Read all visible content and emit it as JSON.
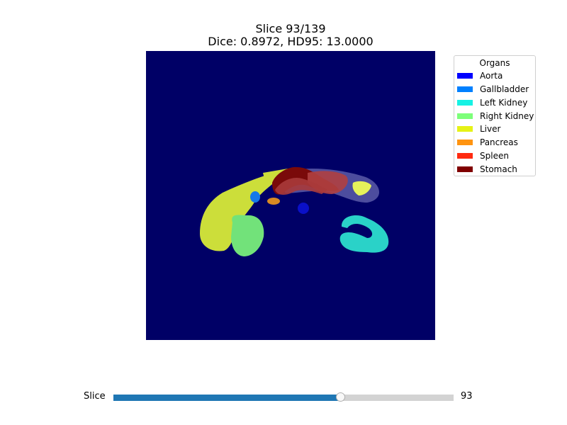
{
  "figure": {
    "title_line1": "Slice 93/139",
    "title_line2": "Dice: 0.8972, HD95: 13.0000"
  },
  "image": {
    "background_color": "#000066",
    "visible_structures": [
      "Aorta",
      "Gallbladder",
      "Left Kidney",
      "Right Kidney",
      "Liver",
      "Pancreas",
      "Spleen",
      "Stomach"
    ]
  },
  "legend": {
    "title": "Organs",
    "placement": "upper-right",
    "items": [
      {
        "label": "Aorta",
        "color": "#0000ff"
      },
      {
        "label": "Gallbladder",
        "color": "#0080ff"
      },
      {
        "label": "Left Kidney",
        "color": "#16f2e4"
      },
      {
        "label": "Right Kidney",
        "color": "#7dff7a"
      },
      {
        "label": "Liver",
        "color": "#e6f216"
      },
      {
        "label": "Pancreas",
        "color": "#ff9410"
      },
      {
        "label": "Spleen",
        "color": "#ff2a10"
      },
      {
        "label": "Stomach",
        "color": "#800000"
      }
    ]
  },
  "slider": {
    "label": "Slice",
    "value": "93",
    "min": 0,
    "max": 139,
    "current": 93,
    "fill_color": "#1f77b4",
    "track_color": "#d3d3d3"
  }
}
